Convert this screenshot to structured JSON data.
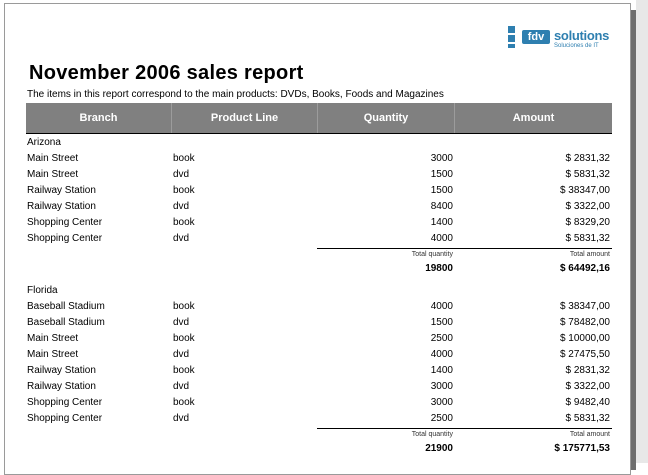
{
  "logo": {
    "mark": "fdv",
    "word": "solutions",
    "tagline": "Soluciones de IT"
  },
  "report": {
    "title": "November 2006 sales report",
    "subtitle": "The items in this report correspond to the main products: DVDs, Books, Foods and Magazines"
  },
  "columns": [
    "Branch",
    "Product Line",
    "Quantity",
    "Amount"
  ],
  "groups": [
    {
      "name": "Arizona",
      "rows": [
        {
          "branch": "Main Street",
          "product": "book",
          "quantity": "3000",
          "amount": "$ 2831,32"
        },
        {
          "branch": "Main Street",
          "product": "dvd",
          "quantity": "1500",
          "amount": "$ 5831,32"
        },
        {
          "branch": "Railway Station",
          "product": "book",
          "quantity": "1500",
          "amount": "$ 38347,00"
        },
        {
          "branch": "Railway Station",
          "product": "dvd",
          "quantity": "8400",
          "amount": "$ 3322,00"
        },
        {
          "branch": "Shopping Center",
          "product": "book",
          "quantity": "1400",
          "amount": "$ 8329,20"
        },
        {
          "branch": "Shopping Center",
          "product": "dvd",
          "quantity": "4000",
          "amount": "$ 5831,32"
        }
      ],
      "total_quantity_label": "Total quantity",
      "total_amount_label": "Total amount",
      "total_quantity": "19800",
      "total_amount": "$ 64492,16"
    },
    {
      "name": "Florida",
      "rows": [
        {
          "branch": "Baseball Stadium",
          "product": "book",
          "quantity": "4000",
          "amount": "$ 38347,00"
        },
        {
          "branch": "Baseball Stadium",
          "product": "dvd",
          "quantity": "1500",
          "amount": "$ 78482,00"
        },
        {
          "branch": "Main Street",
          "product": "book",
          "quantity": "2500",
          "amount": "$ 10000,00"
        },
        {
          "branch": "Main Street",
          "product": "dvd",
          "quantity": "4000",
          "amount": "$ 27475,50"
        },
        {
          "branch": "Railway Station",
          "product": "book",
          "quantity": "1400",
          "amount": "$ 2831,32"
        },
        {
          "branch": "Railway Station",
          "product": "dvd",
          "quantity": "3000",
          "amount": "$ 3322,00"
        },
        {
          "branch": "Shopping Center",
          "product": "book",
          "quantity": "3000",
          "amount": "$ 9482,40"
        },
        {
          "branch": "Shopping Center",
          "product": "dvd",
          "quantity": "2500",
          "amount": "$ 5831,32"
        }
      ],
      "total_quantity_label": "Total quantity",
      "total_amount_label": "Total amount",
      "total_quantity": "21900",
      "total_amount": "$ 175771,53"
    }
  ],
  "colors": {
    "header_bg": "#808080",
    "logo_blue": "#2e7fb0"
  }
}
